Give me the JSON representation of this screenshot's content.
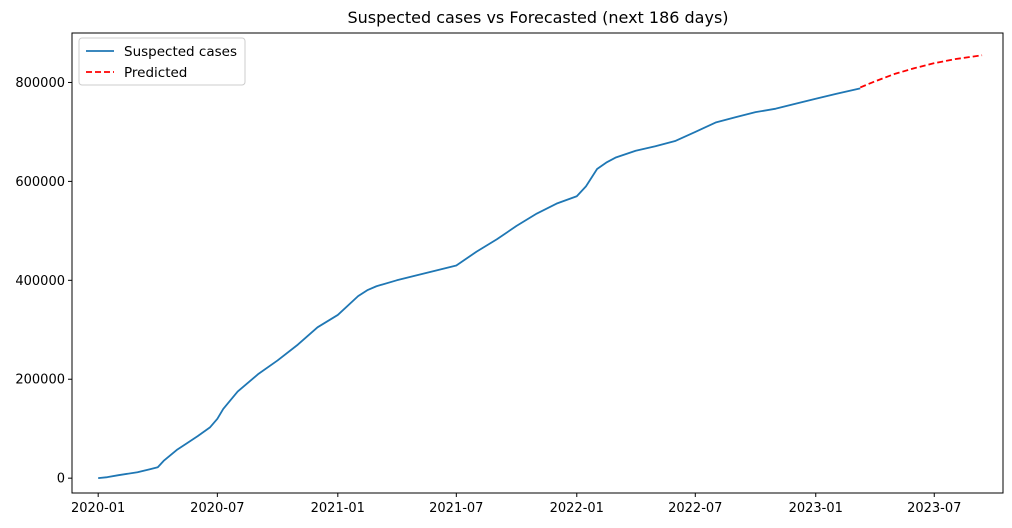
{
  "chart_data": {
    "type": "line",
    "title": "Suspected cases vs Forecasted (next 186 days)",
    "xlabel": "",
    "ylabel": "",
    "x_axis_type": "date",
    "xlim": [
      "2019-11-22",
      "2023-10-14"
    ],
    "ylim": [
      -30000,
      900000
    ],
    "x_ticks": [
      "2020-01",
      "2020-07",
      "2021-01",
      "2021-07",
      "2022-01",
      "2022-07",
      "2023-01",
      "2023-07"
    ],
    "x_tick_dates": [
      "2020-01-01",
      "2020-07-01",
      "2021-01-01",
      "2021-07-01",
      "2022-01-01",
      "2022-07-01",
      "2023-01-01",
      "2023-07-01"
    ],
    "y_ticks": [
      0,
      200000,
      400000,
      600000,
      800000
    ],
    "y_tick_labels": [
      "0",
      "200000",
      "400000",
      "600000",
      "800000"
    ],
    "grid": false,
    "legend_position": "top-left",
    "series": [
      {
        "name": "Suspected cases",
        "color": "#1f77b4",
        "style": "solid",
        "points": [
          [
            "2020-01-01",
            0
          ],
          [
            "2020-01-15",
            2000
          ],
          [
            "2020-02-01",
            6000
          ],
          [
            "2020-03-01",
            12000
          ],
          [
            "2020-03-20",
            18000
          ],
          [
            "2020-04-01",
            22000
          ],
          [
            "2020-04-10",
            35000
          ],
          [
            "2020-05-01",
            58000
          ],
          [
            "2020-05-15",
            70000
          ],
          [
            "2020-06-01",
            85000
          ],
          [
            "2020-06-20",
            103000
          ],
          [
            "2020-07-01",
            120000
          ],
          [
            "2020-07-10",
            140000
          ],
          [
            "2020-08-01",
            175000
          ],
          [
            "2020-09-01",
            210000
          ],
          [
            "2020-10-01",
            238000
          ],
          [
            "2020-11-01",
            270000
          ],
          [
            "2020-12-01",
            305000
          ],
          [
            "2021-01-01",
            330000
          ],
          [
            "2021-02-01",
            368000
          ],
          [
            "2021-02-15",
            380000
          ],
          [
            "2021-03-01",
            388000
          ],
          [
            "2021-04-01",
            400000
          ],
          [
            "2021-05-01",
            410000
          ],
          [
            "2021-06-01",
            420000
          ],
          [
            "2021-07-01",
            430000
          ],
          [
            "2021-08-01",
            458000
          ],
          [
            "2021-09-01",
            483000
          ],
          [
            "2021-10-01",
            510000
          ],
          [
            "2021-11-01",
            535000
          ],
          [
            "2021-12-01",
            555000
          ],
          [
            "2022-01-01",
            570000
          ],
          [
            "2022-01-15",
            590000
          ],
          [
            "2022-02-01",
            625000
          ],
          [
            "2022-02-15",
            638000
          ],
          [
            "2022-03-01",
            648000
          ],
          [
            "2022-04-01",
            662000
          ],
          [
            "2022-05-01",
            671000
          ],
          [
            "2022-06-01",
            682000
          ],
          [
            "2022-07-01",
            700000
          ],
          [
            "2022-08-01",
            719000
          ],
          [
            "2022-09-01",
            730000
          ],
          [
            "2022-10-01",
            740000
          ],
          [
            "2022-11-01",
            747000
          ],
          [
            "2022-12-01",
            757000
          ],
          [
            "2023-01-01",
            767000
          ],
          [
            "2023-02-01",
            777000
          ],
          [
            "2023-03-10",
            788000
          ]
        ]
      },
      {
        "name": "Predicted",
        "color": "#ff0000",
        "style": "dashed",
        "points": [
          [
            "2023-03-10",
            790000
          ],
          [
            "2023-04-01",
            802000
          ],
          [
            "2023-05-01",
            817000
          ],
          [
            "2023-06-01",
            829000
          ],
          [
            "2023-07-01",
            839000
          ],
          [
            "2023-08-01",
            847000
          ],
          [
            "2023-09-12",
            855000
          ]
        ]
      }
    ]
  }
}
